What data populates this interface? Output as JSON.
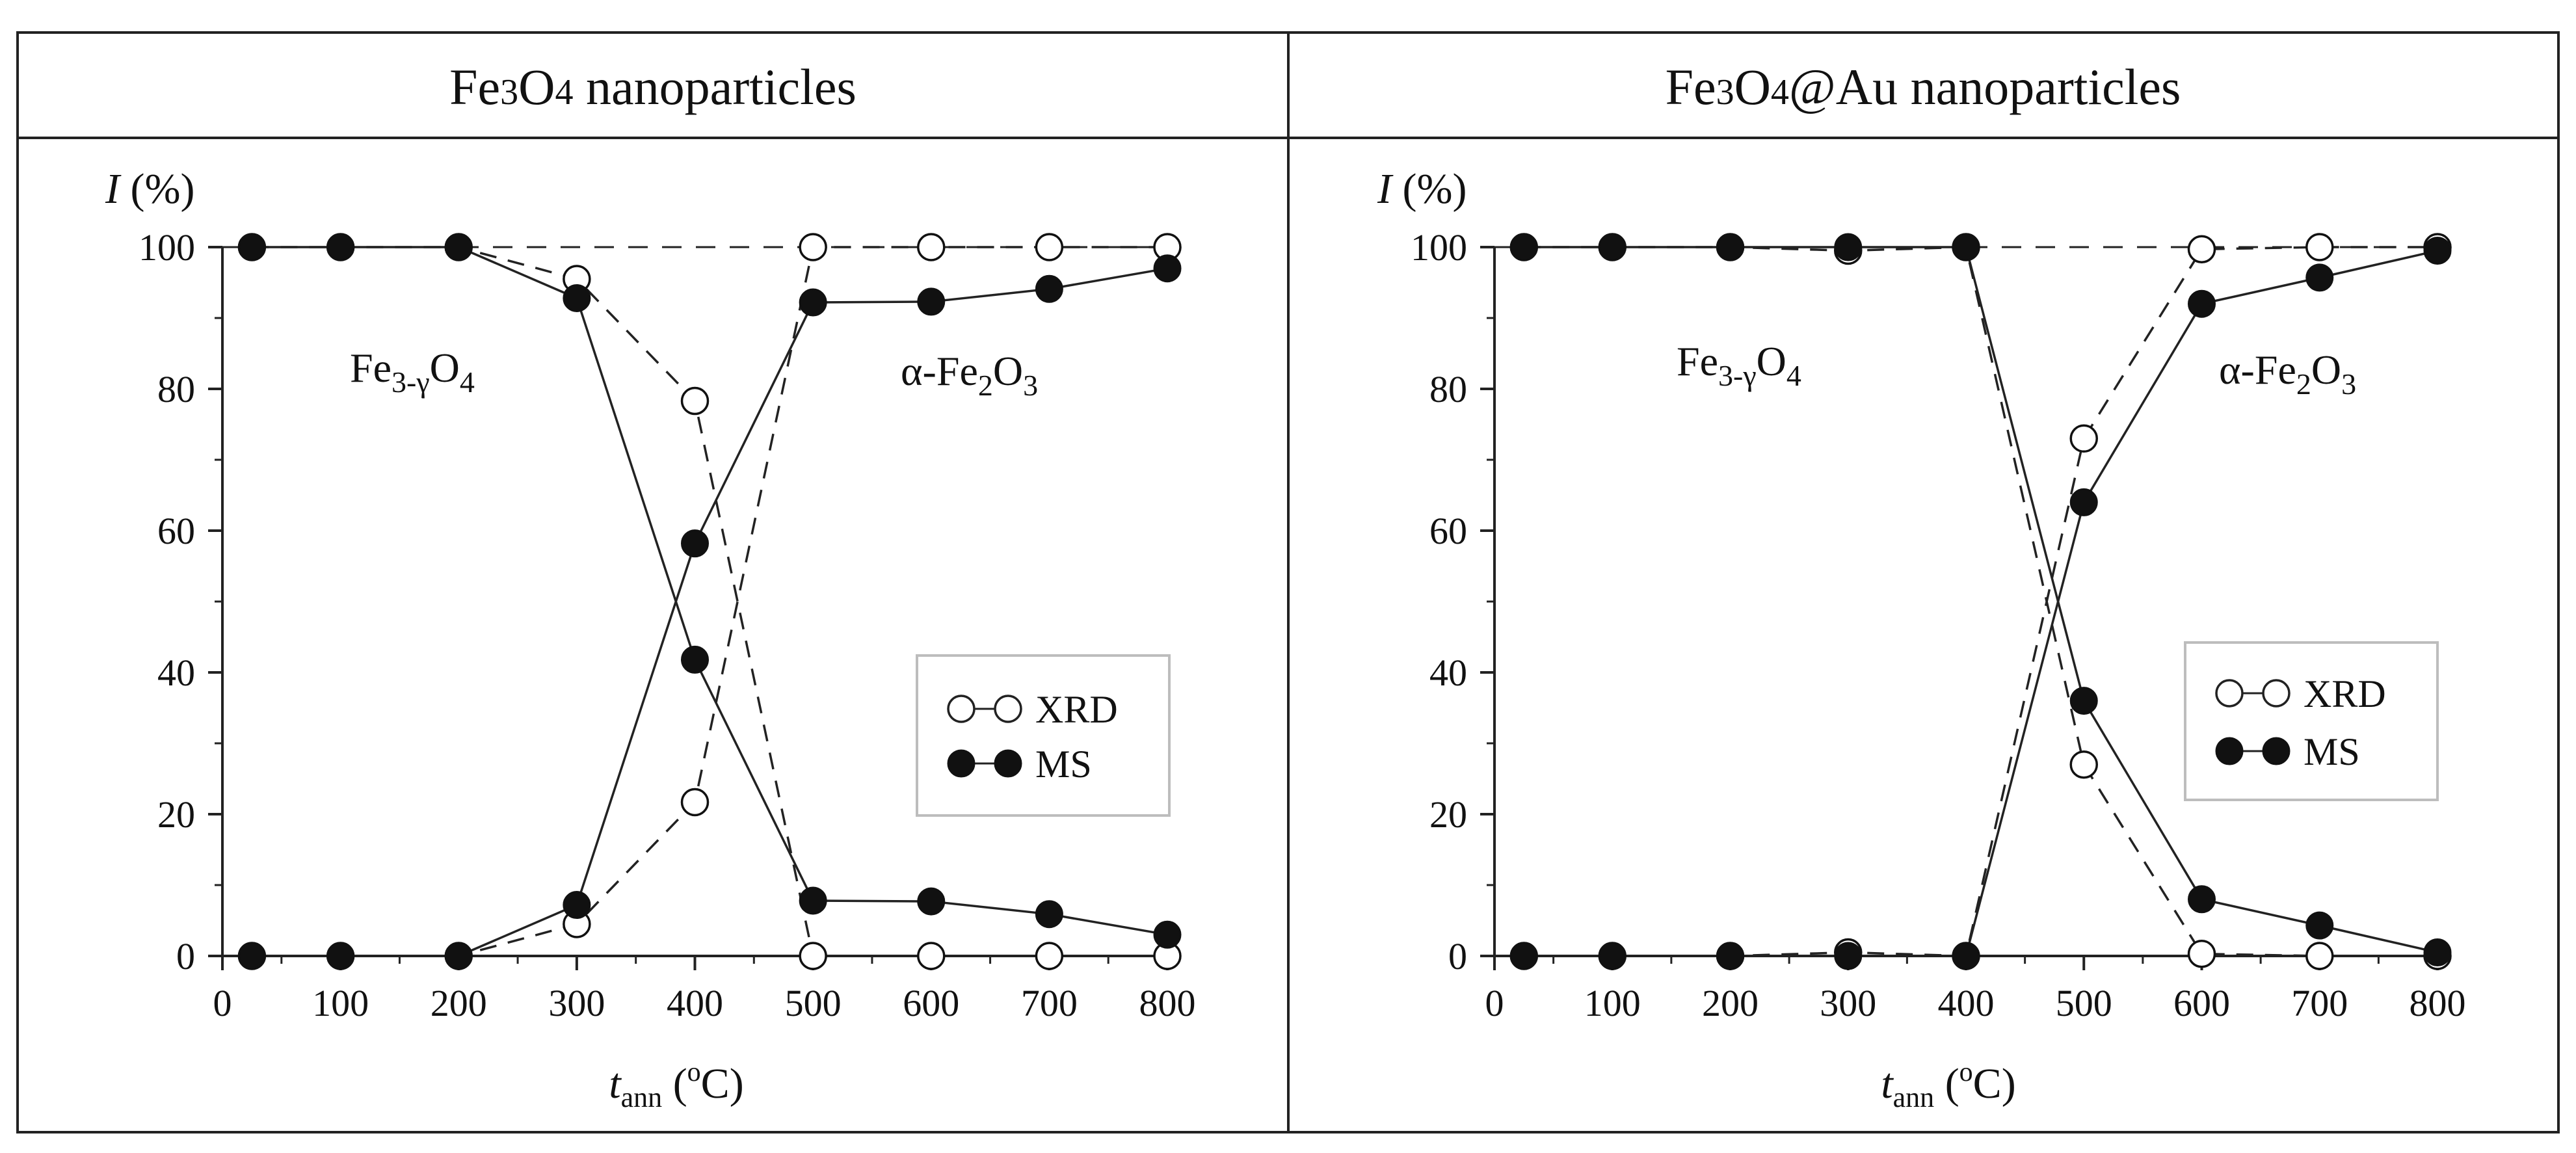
{
  "figure": {
    "panels": [
      {
        "header": {
          "part1": "Fe",
          "sub1": "3",
          "part2": "O",
          "sub2": "4",
          "part3": " nanoparticles"
        }
      },
      {
        "header": {
          "part1": "Fe",
          "sub1": "3",
          "part2": "O",
          "sub2": "4",
          "part3": "@Au nanoparticles"
        }
      }
    ],
    "phases": {
      "magnetite": {
        "base": "Fe",
        "sub": "3-γ",
        "base2": "O",
        "sub2": "4"
      },
      "hematite": {
        "prefix": "α-Fe",
        "sub1": "2",
        "base2": "O",
        "sub2": "3"
      }
    },
    "axis": {
      "ylabel_var": "I",
      "ylabel_unit": " (%)",
      "xlabel_var": "t",
      "xlabel_sub": "ann",
      "xlabel_unit_pre": " (",
      "xlabel_unit_sup": "o",
      "xlabel_unit_post": "C)"
    },
    "legend": {
      "xrd": "XRD",
      "ms": "MS"
    }
  },
  "chart_data": [
    {
      "type": "line",
      "title": "Fe3O4 nanoparticles",
      "xlabel": "t_ann (°C)",
      "ylabel": "I (%)",
      "xlim": [
        0,
        800
      ],
      "ylim": [
        0,
        100
      ],
      "x_ticks": [
        0,
        100,
        200,
        300,
        400,
        500,
        600,
        700,
        800
      ],
      "y_ticks": [
        0,
        20,
        40,
        60,
        80,
        100
      ],
      "x": [
        25,
        100,
        200,
        300,
        400,
        500,
        600,
        700,
        800
      ],
      "series": [
        {
          "name": "XRD Fe3-γO4",
          "marker": "open",
          "line": "dashed",
          "values": [
            100,
            100,
            100,
            95.5,
            78.3,
            0,
            0,
            0,
            0
          ]
        },
        {
          "name": "XRD α-Fe2O3",
          "marker": "open",
          "line": "dashed",
          "values": [
            0,
            0,
            0,
            4.5,
            21.7,
            100,
            100,
            100,
            100
          ]
        },
        {
          "name": "MS Fe3-γO4",
          "marker": "filled",
          "line": "solid",
          "values": [
            100,
            100,
            100,
            92.8,
            41.8,
            7.8,
            7.7,
            5.9,
            3.0
          ]
        },
        {
          "name": "MS α-Fe2O3",
          "marker": "filled",
          "line": "solid",
          "values": [
            0,
            0,
            0,
            7.2,
            58.2,
            92.2,
            92.3,
            94.1,
            97.0
          ]
        }
      ]
    },
    {
      "type": "line",
      "title": "Fe3O4@Au nanoparticles",
      "xlabel": "t_ann (°C)",
      "ylabel": "I (%)",
      "xlim": [
        0,
        800
      ],
      "ylim": [
        0,
        100
      ],
      "x_ticks": [
        0,
        100,
        200,
        300,
        400,
        500,
        600,
        700,
        800
      ],
      "y_ticks": [
        0,
        20,
        40,
        60,
        80,
        100
      ],
      "x": [
        25,
        100,
        200,
        300,
        400,
        500,
        600,
        700,
        800
      ],
      "series": [
        {
          "name": "XRD Fe3-γO4",
          "marker": "open",
          "line": "dashed",
          "values": [
            100,
            100,
            100,
            99.5,
            100,
            27,
            0.3,
            0,
            0
          ]
        },
        {
          "name": "XRD α-Fe2O3",
          "marker": "open",
          "line": "dashed",
          "values": [
            0,
            0,
            0,
            0.5,
            0,
            73,
            99.7,
            100,
            100
          ]
        },
        {
          "name": "MS Fe3-γO4",
          "marker": "filled",
          "line": "solid",
          "values": [
            100,
            100,
            100,
            100,
            100,
            36,
            8,
            4.3,
            0.5
          ]
        },
        {
          "name": "MS α-Fe2O3",
          "marker": "filled",
          "line": "solid",
          "values": [
            0,
            0,
            0,
            0,
            0,
            64,
            92,
            95.7,
            99.5
          ]
        }
      ]
    }
  ]
}
